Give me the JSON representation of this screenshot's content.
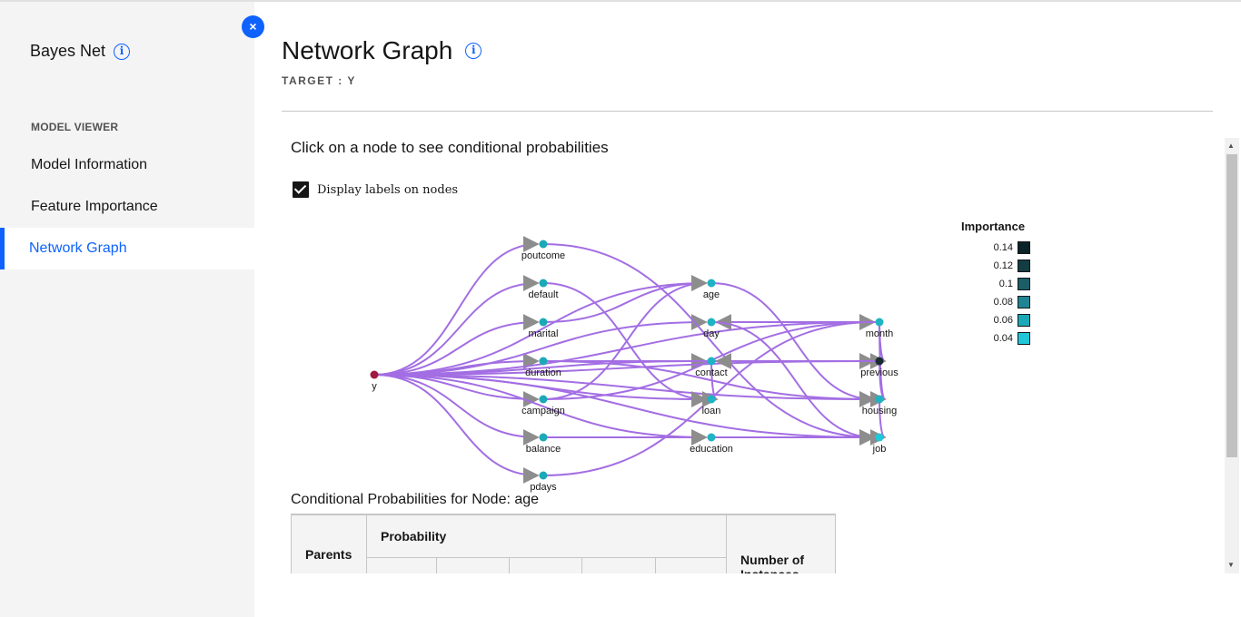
{
  "sidebar": {
    "title": "Bayes Net",
    "section_label": "MODEL VIEWER",
    "items": [
      {
        "label": "Model Information",
        "active": false
      },
      {
        "label": "Feature Importance",
        "active": false
      },
      {
        "label": "Network Graph",
        "active": true
      }
    ],
    "close_label": "×"
  },
  "header": {
    "title": "Network Graph",
    "target": "TARGET : Y"
  },
  "graph_panel": {
    "instruction": "Click on a node to see conditional probabilities",
    "checkbox_label": "Display labels on nodes",
    "checkbox_checked": true,
    "edge_color": "#a36ee3",
    "target_node_color": "#a2193f",
    "nodes": [
      {
        "id": "y",
        "label": "y"
      },
      {
        "id": "poutcome",
        "label": "poutcome"
      },
      {
        "id": "default",
        "label": "default"
      },
      {
        "id": "marital",
        "label": "marital"
      },
      {
        "id": "duration",
        "label": "duration"
      },
      {
        "id": "campaign",
        "label": "campaign"
      },
      {
        "id": "balance",
        "label": "balance"
      },
      {
        "id": "pdays",
        "label": "pdays"
      },
      {
        "id": "age",
        "label": "age"
      },
      {
        "id": "day",
        "label": "day"
      },
      {
        "id": "contact",
        "label": "contact"
      },
      {
        "id": "loan",
        "label": "loan"
      },
      {
        "id": "education",
        "label": "education"
      },
      {
        "id": "month",
        "label": "month"
      },
      {
        "id": "previous",
        "label": "previous"
      },
      {
        "id": "housing",
        "label": "housing"
      },
      {
        "id": "job",
        "label": "job"
      }
    ],
    "legend": {
      "title": "Importance",
      "entries": [
        {
          "label": "0.14",
          "color": "#0b2227"
        },
        {
          "label": "0.12",
          "color": "#133c43"
        },
        {
          "label": "0.1",
          "color": "#1b5e68"
        },
        {
          "label": "0.08",
          "color": "#1f8593"
        },
        {
          "label": "0.06",
          "color": "#1ba9b8"
        },
        {
          "label": "0.04",
          "color": "#1fc7d9"
        }
      ]
    }
  },
  "conditional": {
    "title": "Conditional Probabilities for Node: age",
    "col_parents": "Parents",
    "col_probability": "Probability",
    "col_instances": "Number of Instances"
  }
}
